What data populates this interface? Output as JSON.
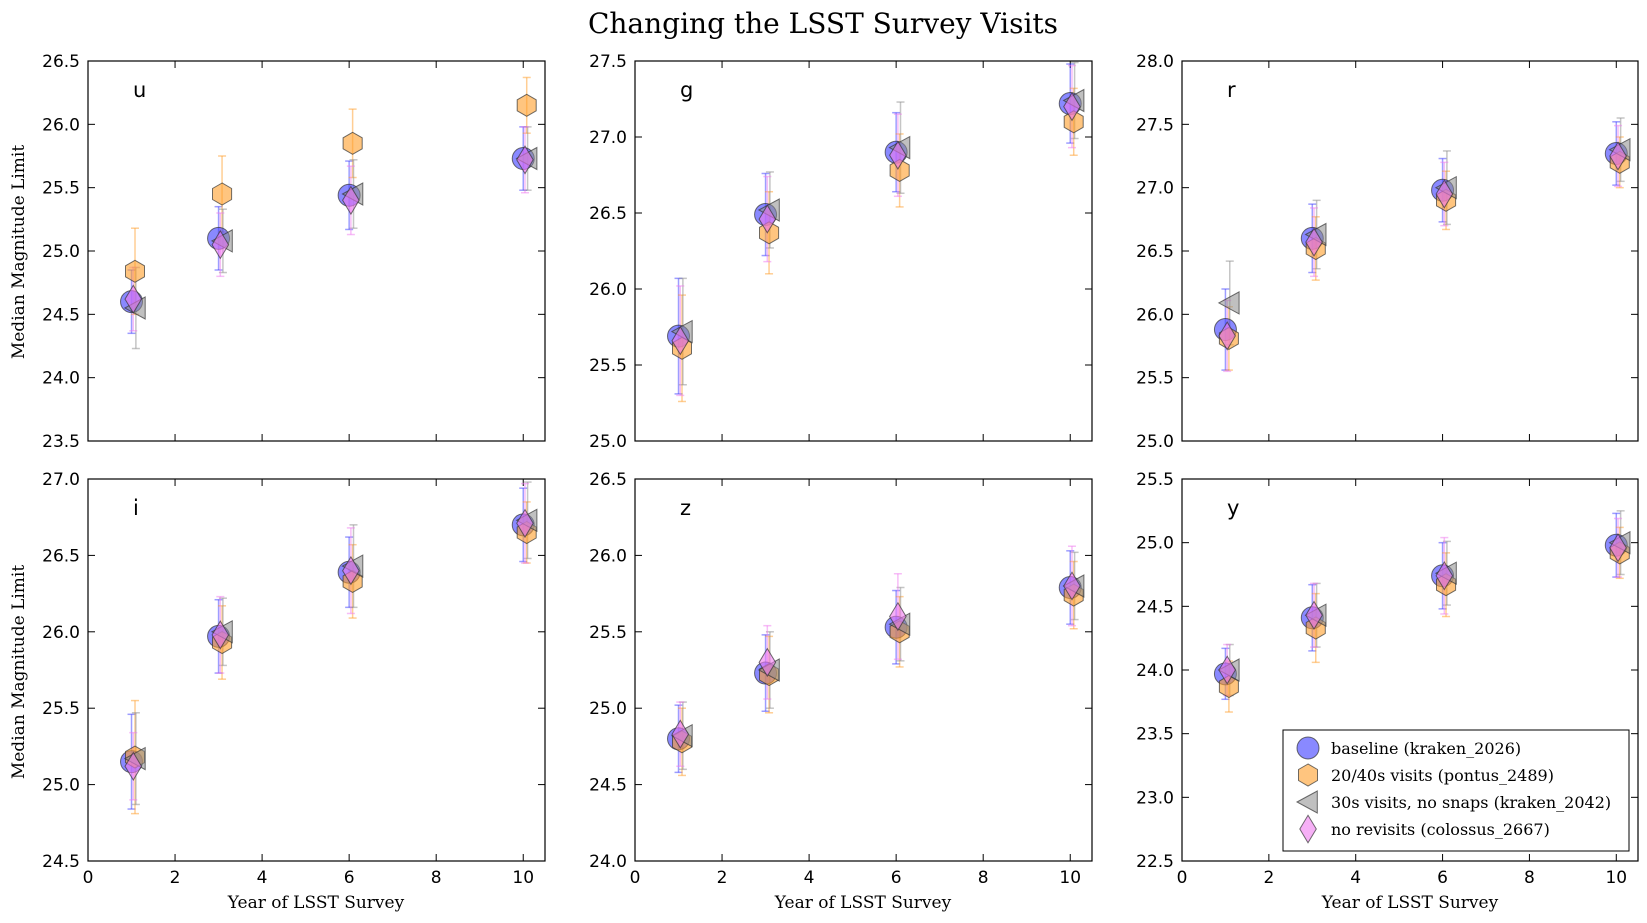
{
  "figure": {
    "title": "Changing the LSST Survey Visits",
    "xlabel": "Year of LSST Survey",
    "ylabel": "Median Magnitude Limit"
  },
  "legend": {
    "placement": "lower-right of bottom-right panel",
    "entries": [
      {
        "key": "baseline",
        "label": "baseline (kraken_2026)",
        "marker": "circle",
        "color": "#3b3bff"
      },
      {
        "key": "visits2040",
        "label": "20/40s visits (pontus_2489)",
        "marker": "hexagon",
        "color": "#ff9e2a"
      },
      {
        "key": "nosnaps",
        "label": "30s visits, no snaps (kraken_2042)",
        "marker": "triangle-left",
        "color": "#8c8c8c"
      },
      {
        "key": "norevisits",
        "label": "no revisits (colossus_2667)",
        "marker": "diamond",
        "color": "#f07cf0"
      }
    ]
  },
  "chart_data": [
    {
      "type": "scatter",
      "panel": "u",
      "label": "u",
      "x": [
        1,
        3,
        6,
        10
      ],
      "xlim": [
        0,
        10.5
      ],
      "xticks": [
        0,
        2,
        4,
        6,
        8,
        10
      ],
      "ylim": [
        23.5,
        26.5
      ],
      "yticks": [
        "23.5",
        "24.0",
        "24.5",
        "25.0",
        "25.5",
        "26.0",
        "26.5"
      ],
      "series": [
        {
          "key": "baseline",
          "values": [
            24.6,
            25.1,
            25.44,
            25.73
          ],
          "err": [
            0.25,
            0.25,
            0.27,
            0.25
          ]
        },
        {
          "key": "visits2040",
          "values": [
            24.84,
            25.45,
            25.85,
            26.15
          ],
          "err": [
            0.34,
            0.3,
            0.27,
            0.22
          ]
        },
        {
          "key": "nosnaps",
          "values": [
            24.55,
            25.08,
            25.45,
            25.73
          ],
          "err": [
            0.32,
            0.25,
            0.27,
            0.25
          ]
        },
        {
          "key": "norevisits",
          "values": [
            24.62,
            25.05,
            25.4,
            25.72
          ],
          "err": [
            0.25,
            0.25,
            0.27,
            0.26
          ]
        }
      ]
    },
    {
      "type": "scatter",
      "panel": "g",
      "label": "g",
      "x": [
        1,
        3,
        6,
        10
      ],
      "xlim": [
        0,
        10.5
      ],
      "xticks": [
        0,
        2,
        4,
        6,
        8,
        10
      ],
      "ylim": [
        25.0,
        27.5
      ],
      "yticks": [
        "25.0",
        "25.5",
        "26.0",
        "26.5",
        "27.0",
        "27.5"
      ],
      "series": [
        {
          "key": "baseline",
          "values": [
            25.69,
            26.49,
            26.9,
            27.22
          ],
          "err": [
            0.38,
            0.27,
            0.26,
            0.26
          ]
        },
        {
          "key": "visits2040",
          "values": [
            25.61,
            26.37,
            26.78,
            27.1
          ],
          "err": [
            0.35,
            0.27,
            0.24,
            0.22
          ]
        },
        {
          "key": "nosnaps",
          "values": [
            25.72,
            26.52,
            26.93,
            27.24
          ],
          "err": [
            0.35,
            0.25,
            0.3,
            0.25
          ]
        },
        {
          "key": "norevisits",
          "values": [
            25.66,
            26.46,
            26.88,
            27.2
          ],
          "err": [
            0.36,
            0.28,
            0.27,
            0.27
          ]
        }
      ]
    },
    {
      "type": "scatter",
      "panel": "r",
      "label": "r",
      "x": [
        1,
        3,
        6,
        10
      ],
      "xlim": [
        0,
        10.5
      ],
      "xticks": [
        0,
        2,
        4,
        6,
        8,
        10
      ],
      "ylim": [
        25.0,
        28.0
      ],
      "yticks": [
        "25.0",
        "25.5",
        "26.0",
        "26.5",
        "27.0",
        "27.5",
        "28.0"
      ],
      "series": [
        {
          "key": "baseline",
          "values": [
            25.88,
            26.6,
            26.98,
            27.27
          ],
          "err": [
            0.32,
            0.27,
            0.25,
            0.25
          ]
        },
        {
          "key": "visits2040",
          "values": [
            25.81,
            26.52,
            26.9,
            27.2
          ],
          "err": [
            0.25,
            0.25,
            0.23,
            0.2
          ]
        },
        {
          "key": "nosnaps",
          "values": [
            26.09,
            26.63,
            27.0,
            27.3
          ],
          "err": [
            0.33,
            0.27,
            0.29,
            0.25
          ]
        },
        {
          "key": "norevisits",
          "values": [
            25.83,
            26.57,
            26.95,
            27.25
          ],
          "err": [
            0.28,
            0.27,
            0.25,
            0.24
          ]
        }
      ]
    },
    {
      "type": "scatter",
      "panel": "i",
      "label": "i",
      "x": [
        1,
        3,
        6,
        10
      ],
      "xlim": [
        0,
        10.5
      ],
      "xticks": [
        0,
        2,
        4,
        6,
        8,
        10
      ],
      "ylim": [
        24.5,
        27.0
      ],
      "yticks": [
        "24.5",
        "25.0",
        "25.5",
        "26.0",
        "26.5",
        "27.0"
      ],
      "series": [
        {
          "key": "baseline",
          "values": [
            25.15,
            25.97,
            26.39,
            26.7
          ],
          "err": [
            0.31,
            0.24,
            0.23,
            0.24
          ]
        },
        {
          "key": "visits2040",
          "values": [
            25.18,
            25.93,
            26.33,
            26.65
          ],
          "err": [
            0.37,
            0.24,
            0.24,
            0.2
          ]
        },
        {
          "key": "nosnaps",
          "values": [
            25.17,
            26.0,
            26.43,
            26.73
          ],
          "err": [
            0.3,
            0.22,
            0.27,
            0.25
          ]
        },
        {
          "key": "norevisits",
          "values": [
            25.12,
            25.98,
            26.4,
            26.71
          ],
          "err": [
            0.22,
            0.25,
            0.28,
            0.26
          ]
        }
      ]
    },
    {
      "type": "scatter",
      "panel": "z",
      "label": "z",
      "x": [
        1,
        3,
        6,
        10
      ],
      "xlim": [
        0,
        10.5
      ],
      "xticks": [
        0,
        2,
        4,
        6,
        8,
        10
      ],
      "ylim": [
        24.0,
        26.5
      ],
      "yticks": [
        "24.0",
        "24.5",
        "25.0",
        "25.5",
        "26.0",
        "26.5"
      ],
      "series": [
        {
          "key": "baseline",
          "values": [
            24.8,
            25.23,
            25.53,
            25.79
          ],
          "err": [
            0.22,
            0.25,
            0.24,
            0.24
          ]
        },
        {
          "key": "visits2040",
          "values": [
            24.78,
            25.22,
            25.5,
            25.74
          ],
          "err": [
            0.22,
            0.25,
            0.23,
            0.22
          ]
        },
        {
          "key": "nosnaps",
          "values": [
            24.82,
            25.25,
            25.55,
            25.8
          ],
          "err": [
            0.22,
            0.25,
            0.24,
            0.22
          ]
        },
        {
          "key": "norevisits",
          "values": [
            24.83,
            25.3,
            25.6,
            25.8
          ],
          "err": [
            0.21,
            0.24,
            0.28,
            0.26
          ]
        }
      ]
    },
    {
      "type": "scatter",
      "panel": "y",
      "label": "y",
      "x": [
        1,
        3,
        6,
        10
      ],
      "xlim": [
        0,
        10.5
      ],
      "xticks": [
        0,
        2,
        4,
        6,
        8,
        10
      ],
      "ylim": [
        22.5,
        25.5
      ],
      "yticks": [
        "22.5",
        "23.0",
        "23.5",
        "24.0",
        "24.5",
        "25.0",
        "25.5"
      ],
      "series": [
        {
          "key": "baseline",
          "values": [
            23.97,
            24.41,
            24.74,
            24.98
          ],
          "err": [
            0.2,
            0.26,
            0.26,
            0.25
          ]
        },
        {
          "key": "visits2040",
          "values": [
            23.87,
            24.33,
            24.67,
            24.92
          ],
          "err": [
            0.2,
            0.27,
            0.25,
            0.2
          ]
        },
        {
          "key": "nosnaps",
          "values": [
            24.0,
            24.43,
            24.76,
            25.0
          ],
          "err": [
            0.2,
            0.25,
            0.25,
            0.25
          ]
        },
        {
          "key": "norevisits",
          "values": [
            24.0,
            24.43,
            24.74,
            24.96
          ],
          "err": [
            0.2,
            0.25,
            0.3,
            0.23
          ]
        }
      ]
    }
  ]
}
